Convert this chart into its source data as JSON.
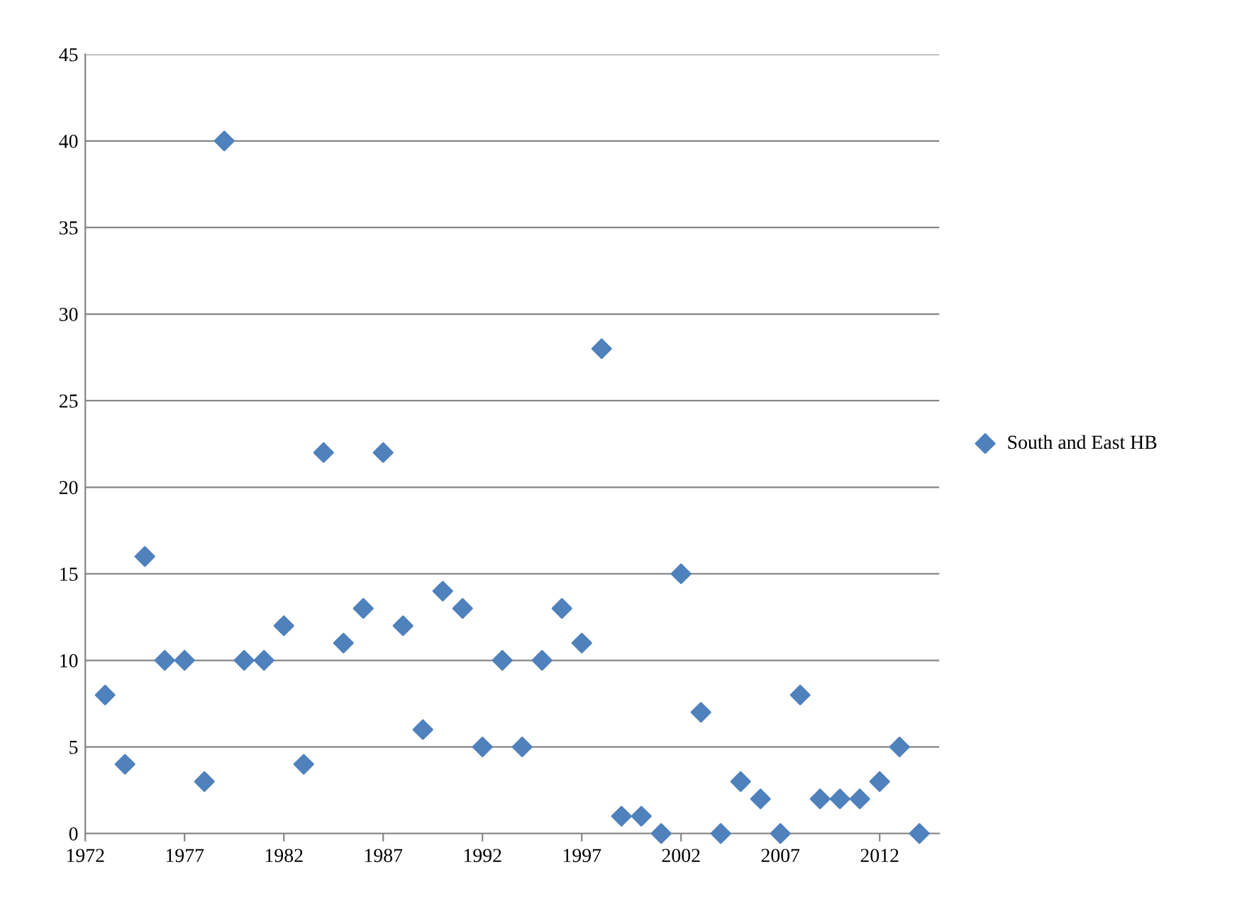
{
  "chart_data": {
    "type": "scatter",
    "x": [
      1973,
      1974,
      1975,
      1976,
      1977,
      1978,
      1979,
      1980,
      1981,
      1982,
      1983,
      1984,
      1985,
      1986,
      1987,
      1988,
      1989,
      1990,
      1991,
      1992,
      1993,
      1994,
      1995,
      1996,
      1997,
      1998,
      1999,
      2000,
      2001,
      2002,
      2003,
      2004,
      2005,
      2006,
      2007,
      2008,
      2009,
      2010,
      2011,
      2012,
      2013,
      2014
    ],
    "series": [
      {
        "name": "South and East HB",
        "color": "#4f81bd",
        "values": [
          8,
          4,
          16,
          10,
          10,
          3,
          40,
          10,
          10,
          12,
          4,
          22,
          11,
          13,
          22,
          12,
          6,
          14,
          13,
          5,
          10,
          5,
          10,
          13,
          11,
          28,
          1,
          1,
          0,
          15,
          7,
          0,
          3,
          2,
          0,
          8,
          2,
          2,
          2,
          3,
          5,
          0
        ]
      }
    ],
    "xlim": [
      1972,
      2015
    ],
    "xticks": [
      1972,
      1977,
      1982,
      1987,
      1992,
      1997,
      2002,
      2007,
      2012
    ],
    "ylim": [
      0,
      45
    ],
    "yticks": [
      0,
      5,
      10,
      15,
      20,
      25,
      30,
      35,
      40,
      45
    ],
    "grid": "y",
    "legend": "right",
    "marker": "diamond"
  }
}
